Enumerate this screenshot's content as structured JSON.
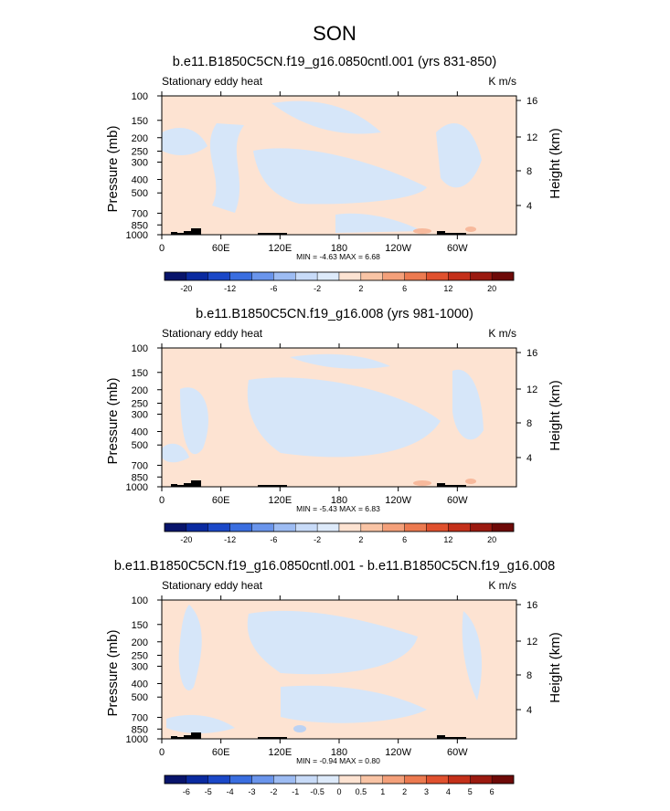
{
  "figure": {
    "title": "SON"
  },
  "chart_data": [
    {
      "type": "heatmap",
      "title": "b.e11.B1850C5CN.f19_g16.0850cntl.001 (yrs 831-850)",
      "left_label": "Stationary eddy heat",
      "units": "K m/s",
      "ylabel": "Pressure (mb)",
      "y2label": "Height (km)",
      "xticks": [
        "0",
        "60E",
        "120E",
        "180",
        "120W",
        "60W"
      ],
      "xlim": [
        0,
        360
      ],
      "yticks": [
        "100",
        "150",
        "200",
        "250",
        "300",
        "400",
        "500",
        "700",
        "850",
        "1000"
      ],
      "ylim": [
        1000,
        100
      ],
      "y2ticks": [
        "4",
        "8",
        "12",
        "16"
      ],
      "stats": "MIN =  -4.63   MAX =   6.68",
      "colorbar": {
        "labels": [
          "-20",
          "-12",
          "-6",
          "-2",
          "2",
          "6",
          "12",
          "20"
        ],
        "colors": [
          "#08146b",
          "#0a2aa0",
          "#1b48c8",
          "#3a6ee0",
          "#6a95ec",
          "#9dbcf3",
          "#c8dbf8",
          "#ddeafa",
          "#fde3d2",
          "#f9c4a5",
          "#f4a07a",
          "#ec7a50",
          "#e0512e",
          "#c4301a",
          "#9b1a10",
          "#6e0a08"
        ]
      }
    },
    {
      "type": "heatmap",
      "title": "b.e11.B1850C5CN.f19_g16.008 (yrs 981-1000)",
      "left_label": "Stationary eddy heat",
      "units": "K m/s",
      "ylabel": "Pressure (mb)",
      "y2label": "Height (km)",
      "xticks": [
        "0",
        "60E",
        "120E",
        "180",
        "120W",
        "60W"
      ],
      "xlim": [
        0,
        360
      ],
      "yticks": [
        "100",
        "150",
        "200",
        "250",
        "300",
        "400",
        "500",
        "700",
        "850",
        "1000"
      ],
      "ylim": [
        1000,
        100
      ],
      "y2ticks": [
        "4",
        "8",
        "12",
        "16"
      ],
      "stats": "MIN =  -5.43   MAX =   6.83",
      "colorbar": {
        "labels": [
          "-20",
          "-12",
          "-6",
          "-2",
          "2",
          "6",
          "12",
          "20"
        ],
        "colors": [
          "#08146b",
          "#0a2aa0",
          "#1b48c8",
          "#3a6ee0",
          "#6a95ec",
          "#9dbcf3",
          "#c8dbf8",
          "#ddeafa",
          "#fde3d2",
          "#f9c4a5",
          "#f4a07a",
          "#ec7a50",
          "#e0512e",
          "#c4301a",
          "#9b1a10",
          "#6e0a08"
        ]
      }
    },
    {
      "type": "heatmap",
      "title": "b.e11.B1850C5CN.f19_g16.0850cntl.001 - b.e11.B1850C5CN.f19_g16.008",
      "left_label": "Stationary eddy heat",
      "units": "K m/s",
      "ylabel": "Pressure (mb)",
      "y2label": "Height (km)",
      "xticks": [
        "0",
        "60E",
        "120E",
        "180",
        "120W",
        "60W"
      ],
      "xlim": [
        0,
        360
      ],
      "yticks": [
        "100",
        "150",
        "200",
        "250",
        "300",
        "400",
        "500",
        "700",
        "850",
        "1000"
      ],
      "ylim": [
        1000,
        100
      ],
      "y2ticks": [
        "4",
        "8",
        "12",
        "16"
      ],
      "stats": "MIN =  -0.94   MAX =   0.80",
      "colorbar": {
        "labels": [
          "-6",
          "-5",
          "-4",
          "-3",
          "-2",
          "-1",
          "-0.5",
          "0",
          "0.5",
          "1",
          "2",
          "3",
          "4",
          "5",
          "6"
        ],
        "colors": [
          "#08146b",
          "#0a2aa0",
          "#1b48c8",
          "#3a6ee0",
          "#6a95ec",
          "#9dbcf3",
          "#c8dbf8",
          "#ddeafa",
          "#fde3d2",
          "#f9c4a5",
          "#f4a07a",
          "#ec7a50",
          "#e0512e",
          "#c4301a",
          "#9b1a10",
          "#6e0a08"
        ]
      }
    }
  ]
}
